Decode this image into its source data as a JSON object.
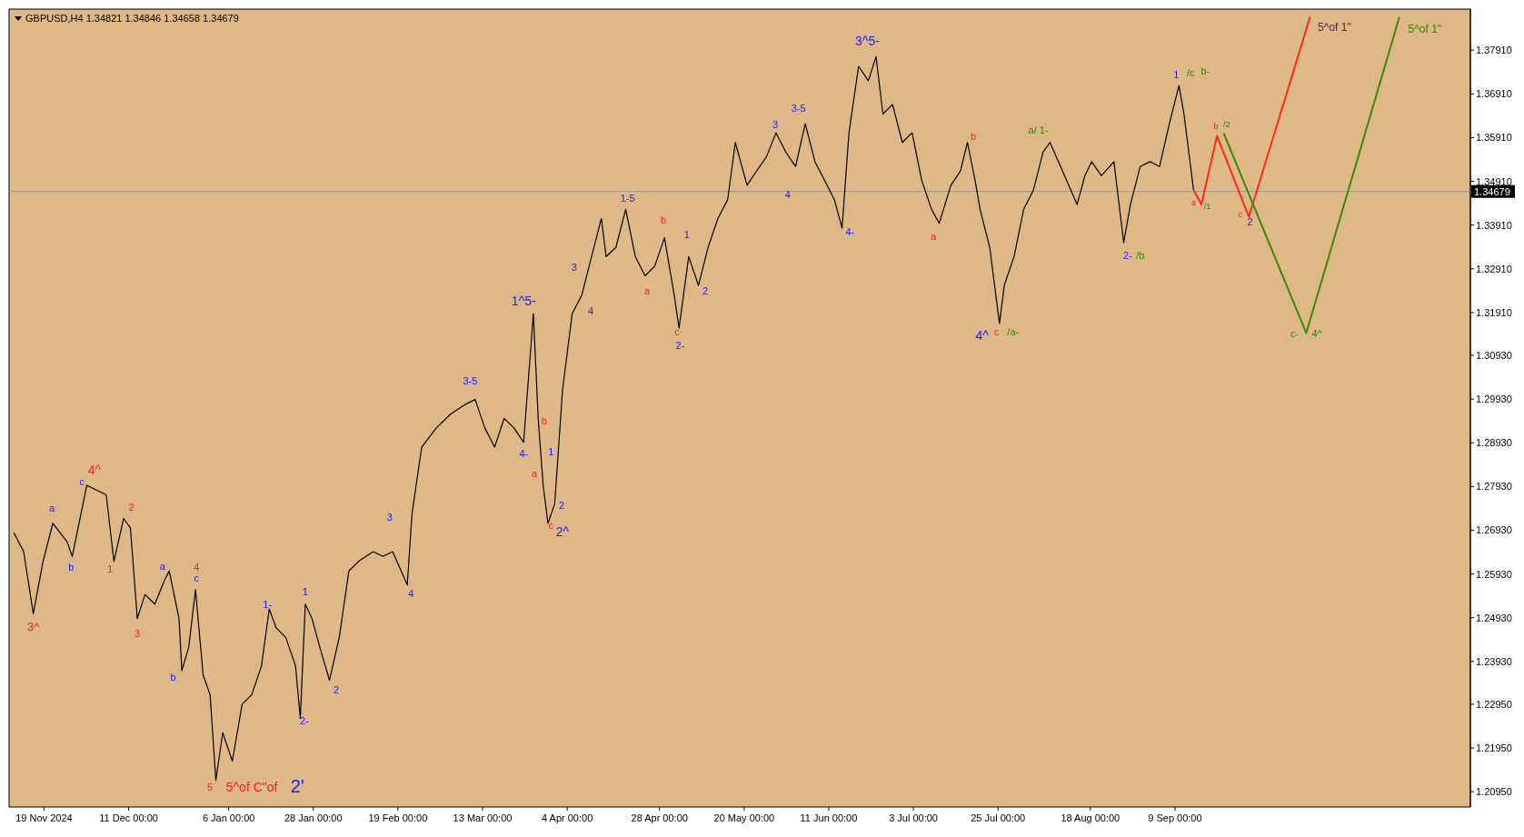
{
  "chart_data": {
    "type": "line",
    "title": "GBPUSD,H4  1.34821 1.34846 1.34658 1.34679",
    "xlim": [
      "2024-11-09T22:00",
      "2025-11-24T19:00"
    ],
    "xticks": [
      {
        "value": "2024-11-19",
        "label": "19 Nov 2024"
      },
      {
        "value": "2024-12-11",
        "label": "11 Dec 00:00"
      },
      {
        "value": "2025-01-06",
        "label": "6 Jan 00:00"
      },
      {
        "value": "2025-01-28",
        "label": "28 Jan 00:00"
      },
      {
        "value": "2025-02-19",
        "label": "19 Feb 00:00"
      },
      {
        "value": "2025-03-13",
        "label": "13 Mar 00:00"
      },
      {
        "value": "2025-04-04",
        "label": "4 Apr 00:00"
      },
      {
        "value": "2025-04-28",
        "label": "28 Apr 00:00"
      },
      {
        "value": "2025-05-20",
        "label": "20 May 00:00"
      },
      {
        "value": "2025-06-11",
        "label": "11 Jun 00:00"
      },
      {
        "value": "2025-07-03",
        "label": "3 Jul 00:00"
      },
      {
        "value": "2025-07-25",
        "label": "25 Jul 00:00"
      },
      {
        "value": "2025-08-18",
        "label": "18 Aug 00:00"
      },
      {
        "value": "2025-09-09",
        "label": "9 Sep 00:00"
      }
    ],
    "ylim": [
      1.206,
      1.3885
    ],
    "yticks": [
      {
        "value": 1.3791,
        "label": "1.37910"
      },
      {
        "value": 1.3691,
        "label": "1.36910"
      },
      {
        "value": 1.3591,
        "label": "1.35910"
      },
      {
        "value": 1.3491,
        "label": "1.34910"
      },
      {
        "value": 1.3391,
        "label": "1.33910"
      },
      {
        "value": 1.3291,
        "label": "1.32910"
      },
      {
        "value": 1.3191,
        "label": "1.31910"
      },
      {
        "value": 1.3093,
        "label": "1.30930"
      },
      {
        "value": 1.2993,
        "label": "1.29930"
      },
      {
        "value": 1.2893,
        "label": "1.28930"
      },
      {
        "value": 1.2793,
        "label": "1.27930"
      },
      {
        "value": 1.2693,
        "label": "1.26930"
      },
      {
        "value": 1.2593,
        "label": "1.25930"
      },
      {
        "value": 1.2493,
        "label": "1.24930"
      },
      {
        "value": 1.2393,
        "label": "1.23930"
      },
      {
        "value": 1.2295,
        "label": "1.22950"
      },
      {
        "value": 1.2195,
        "label": "1.21950"
      },
      {
        "value": 1.2095,
        "label": "1.20950"
      }
    ],
    "series": [
      {
        "color": "#000000",
        "x": [
          "2024-11-11T04:00",
          "2024-11-13T17:00",
          "2024-11-16T05:00",
          "2024-11-18T18:00",
          "2024-11-21T07:00",
          "2024-11-25T01:00",
          "2024-11-26T08:00",
          "2024-11-30T03:00",
          "2024-12-02T15:00",
          "2024-12-05T04:00",
          "2024-12-07T04:00",
          "2024-12-09T17:00",
          "2024-12-11T11:00",
          "2024-12-13T06:00",
          "2024-12-15T06:00",
          "2024-12-17T19:00",
          "2024-12-20T07:00",
          "2024-12-21T13:00",
          "2024-12-24T02:00",
          "2024-12-24T20:00",
          "2024-12-26T15:00",
          "2024-12-28T09:00",
          "2024-12-30T09:00",
          "2025-01-01T04:00",
          "2025-01-02T16:00",
          "2025-01-04T11:00",
          "2025-01-06T23:00",
          "2025-01-09T12:00",
          "2025-01-12T00:00",
          "2025-01-14T13:00",
          "2025-01-16T13:00",
          "2025-01-18T08:00",
          "2025-01-20T20:00",
          "2025-01-23T09:00",
          "2025-01-24T15:00",
          "2025-01-25T22:00",
          "2025-01-27T16:00",
          "2025-01-29T16:00",
          "2025-02-01T05:00",
          "2025-02-03T18:00",
          "2025-02-06T06:00",
          "2025-02-08T19:00",
          "2025-02-12T14:00",
          "2025-02-15T02:00",
          "2025-02-17T15:00",
          "2025-02-21T10:00",
          "2025-02-22T16:00",
          "2025-02-25T04:00",
          "2025-02-28T23:00",
          "2025-03-04T18:00",
          "2025-03-08T13:00",
          "2025-03-11T02:00",
          "2025-03-13T14:00",
          "2025-03-16T03:00",
          "2025-03-18T15:00",
          "2025-03-21T04:00",
          "2025-03-23T16:00",
          "2025-03-26T05:00",
          "2025-03-27T11:00",
          "2025-03-28T18:00",
          "2025-03-30T00:00",
          "2025-03-31T18:00",
          "2025-04-02T19:00",
          "2025-04-05T07:00",
          "2025-04-07T20:00",
          "2025-04-10T08:00",
          "2025-04-12T21:00",
          "2025-04-14T03:00",
          "2025-04-16T16:00",
          "2025-04-19T05:00",
          "2025-04-21T17:00",
          "2025-04-24T06:00",
          "2025-04-26T18:00",
          "2025-04-29T07:00",
          "2025-05-01T19:00",
          "2025-05-03T02:00",
          "2025-05-05T14:00",
          "2025-05-08T03:00",
          "2025-05-10T15:00",
          "2025-05-13T04:00",
          "2025-05-15T17:00",
          "2025-05-17T17:00",
          "2025-05-20T18:00",
          "2025-05-23T06:00",
          "2025-05-25T19:00",
          "2025-05-28T07:00",
          "2025-05-30T20:00",
          "2025-06-02T09:00",
          "2025-06-04T21:00",
          "2025-06-07T10:00",
          "2025-06-09T22:00",
          "2025-06-12T11:00",
          "2025-06-14T11:00",
          "2025-06-16T06:00",
          "2025-06-18T18:00",
          "2025-06-21T07:00",
          "2025-06-23T07:00",
          "2025-06-25T02:00",
          "2025-06-27T14:00",
          "2025-06-30T03:00",
          "2025-07-02T16:00",
          "2025-07-05T04:00",
          "2025-07-07T17:00",
          "2025-07-09T17:00",
          "2025-07-12T18:00",
          "2025-07-15T06:00",
          "2025-07-17T01:00",
          "2025-07-19T01:00",
          "2025-07-20T08:00",
          "2025-07-22T20:00",
          "2025-07-25T09:00",
          "2025-07-26T15:00",
          "2025-07-29T04:00",
          "2025-07-31T16:00",
          "2025-08-03T05:00",
          "2025-08-05T17:00",
          "2025-08-07T12:00",
          "2025-08-10T18:00",
          "2025-08-14T13:00",
          "2025-08-16T14:00",
          "2025-08-18T08:00",
          "2025-08-20T21:00",
          "2025-08-24T03:00",
          "2025-08-26T16:00",
          "2025-08-28T10:00",
          "2025-08-30T23:00",
          "2025-09-02T12:00",
          "2025-09-05T00:00",
          "2025-09-07T13:00",
          "2025-09-10T01:00",
          "2025-09-11T08:00",
          "2025-09-13T20:00"
        ],
        "values": [
          1.2687,
          1.2644,
          1.2502,
          1.2622,
          1.2709,
          1.2666,
          1.2633,
          1.2796,
          1.2785,
          1.2774,
          1.2622,
          1.272,
          1.2698,
          1.2491,
          1.2546,
          1.2524,
          1.2578,
          1.26,
          1.2491,
          1.2372,
          1.2426,
          1.2557,
          1.2361,
          1.2317,
          1.2121,
          1.223,
          1.2165,
          1.2295,
          1.2317,
          1.2383,
          1.2513,
          1.247,
          1.2448,
          1.2383,
          1.2263,
          1.2524,
          1.2491,
          1.2426,
          1.235,
          1.2448,
          1.26,
          1.2622,
          1.2644,
          1.2633,
          1.2644,
          1.2568,
          1.2731,
          1.2883,
          1.2927,
          1.2959,
          1.2981,
          1.2992,
          1.2927,
          1.2883,
          1.2949,
          1.2927,
          1.2894,
          1.3188,
          1.2949,
          1.2796,
          1.2709,
          1.2753,
          1.3014,
          1.3188,
          1.3232,
          1.3319,
          1.3406,
          1.3319,
          1.334,
          1.3427,
          1.3319,
          1.3275,
          1.3297,
          1.3362,
          1.3232,
          1.3155,
          1.3319,
          1.3253,
          1.334,
          1.3406,
          1.3449,
          1.358,
          1.3482,
          1.3515,
          1.3547,
          1.3602,
          1.3558,
          1.3525,
          1.3623,
          1.3536,
          1.3493,
          1.3449,
          1.3384,
          1.3602,
          1.3754,
          1.3721,
          1.3776,
          1.3645,
          1.3667,
          1.358,
          1.3602,
          1.3493,
          1.3427,
          1.3395,
          1.3482,
          1.3515,
          1.358,
          1.3493,
          1.3427,
          1.334,
          1.3166,
          1.3253,
          1.3319,
          1.3427,
          1.3471,
          1.3558,
          1.358,
          1.3515,
          1.3438,
          1.3504,
          1.3536,
          1.3504,
          1.3536,
          1.3351,
          1.3438,
          1.3525,
          1.3536,
          1.3525,
          1.3623,
          1.371,
          1.3645,
          1.3471
        ]
      },
      {
        "type": "line",
        "color": "#ff2a1a",
        "x": [
          "2025-09-13T20:00",
          "2025-09-15T21:00",
          "2025-09-19T22:00",
          "2025-09-28T05:00",
          "2025-10-14T03:00"
        ],
        "values": [
          1.3471,
          1.3438,
          1.3595,
          1.341,
          1.3867
        ]
      },
      {
        "type": "line",
        "color": "#3a8a0a",
        "x": [
          "2025-09-21T16:00",
          "2025-10-13T03:00",
          "2025-11-06T08:00"
        ],
        "values": [
          1.3601,
          1.3144,
          1.3867
        ]
      }
    ],
    "ref_lines": [
      {
        "axis": "y",
        "value": 1.34679,
        "label": "1.34679",
        "color": "#999999"
      }
    ],
    "annotations": [
      "3^",
      "a",
      "b",
      "c",
      "4^",
      "2",
      "1",
      "3",
      "a",
      "4",
      "c",
      "b",
      "5",
      "5^of C\"of",
      "2'",
      "1-",
      "1",
      "2-",
      "2",
      "3",
      "4",
      "3-5",
      "4-",
      "a",
      "b",
      "1",
      "2",
      "c",
      "2^",
      "1^5-",
      "3",
      "4",
      "1-5",
      "b",
      "a",
      "1",
      "2",
      "c",
      "2-",
      "3",
      "3-5",
      "4",
      "4-",
      "3^5-",
      "a",
      "b",
      "4^",
      "c",
      "/a-",
      "a/ 1-",
      "2-",
      "/b",
      "1",
      "/c",
      "b-",
      "a",
      "/1",
      "b",
      "/2",
      "c",
      "2",
      "c-",
      "4^",
      "5^of 1\"",
      "5^of 1\""
    ]
  }
}
